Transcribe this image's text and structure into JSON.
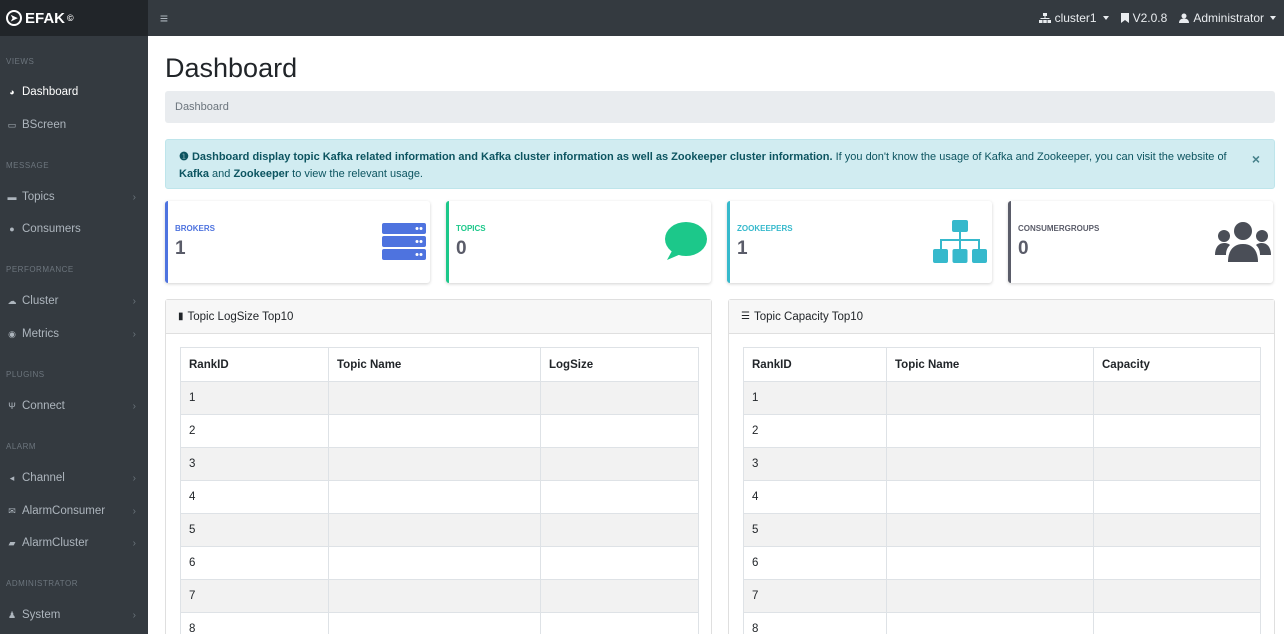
{
  "topbar": {
    "brand": "EFAK",
    "brand_mark": "©",
    "cluster": "cluster1",
    "version": "V2.0.8",
    "user": "Administrator"
  },
  "sidebar": {
    "sections": [
      {
        "title": "VIEWS"
      },
      {
        "title": "MESSAGE"
      },
      {
        "title": "PERFORMANCE"
      },
      {
        "title": "PLUGINS"
      },
      {
        "title": "ALARM"
      },
      {
        "title": "ADMINISTRATOR"
      }
    ],
    "items": [
      {
        "label": "Dashboard",
        "icon": "tachometer-icon"
      },
      {
        "label": "BScreen",
        "icon": "desktop-icon"
      },
      {
        "label": "Topics",
        "icon": "comment-icon"
      },
      {
        "label": "Consumers",
        "icon": "users-icon"
      },
      {
        "label": "Cluster",
        "icon": "cloud-icon"
      },
      {
        "label": "Metrics",
        "icon": "eye-icon"
      },
      {
        "label": "Connect",
        "icon": "plug-icon"
      },
      {
        "label": "Channel",
        "icon": "bullhorn-icon"
      },
      {
        "label": "AlarmConsumer",
        "icon": "envelope-icon"
      },
      {
        "label": "AlarmCluster",
        "icon": "hdd-icon"
      },
      {
        "label": "System",
        "icon": "user-cog-icon"
      }
    ]
  },
  "page": {
    "title": "Dashboard",
    "breadcrumb": "Dashboard"
  },
  "alert": {
    "bold_text": "Dashboard display topic Kafka related information and Kafka cluster information as well as Zookeeper cluster information.",
    "text_1": " If you don't know the usage of Kafka and Zookeeper, you can visit the website of ",
    "link_kafka": "Kafka",
    "text_and": " and ",
    "link_zookeeper": "Zookeeper",
    "text_2": " to view the relevant usage.",
    "close": "×"
  },
  "cards": [
    {
      "label": "BROKERS",
      "value": "1",
      "color": "#4e73df",
      "icon": "server-icon"
    },
    {
      "label": "TOPICS",
      "value": "0",
      "color": "#1cc88a",
      "icon": "comment-icon"
    },
    {
      "label": "ZOOKEEPERS",
      "value": "1",
      "color": "#36b9cc",
      "icon": "sitemap-icon"
    },
    {
      "label": "CONSUMERGROUPS",
      "value": "0",
      "color": "#5a5c69",
      "icon": "users-icon"
    }
  ],
  "logsize_panel": {
    "title": "Topic LogSize Top10",
    "columns": [
      "RankID",
      "Topic Name",
      "LogSize"
    ],
    "rows": [
      "1",
      "2",
      "3",
      "4",
      "5",
      "6",
      "7",
      "8"
    ]
  },
  "capacity_panel": {
    "title": "Topic Capacity Top10",
    "columns": [
      "RankID",
      "Topic Name",
      "Capacity"
    ],
    "rows": [
      "1",
      "2",
      "3",
      "4",
      "5",
      "6",
      "7",
      "8"
    ]
  }
}
